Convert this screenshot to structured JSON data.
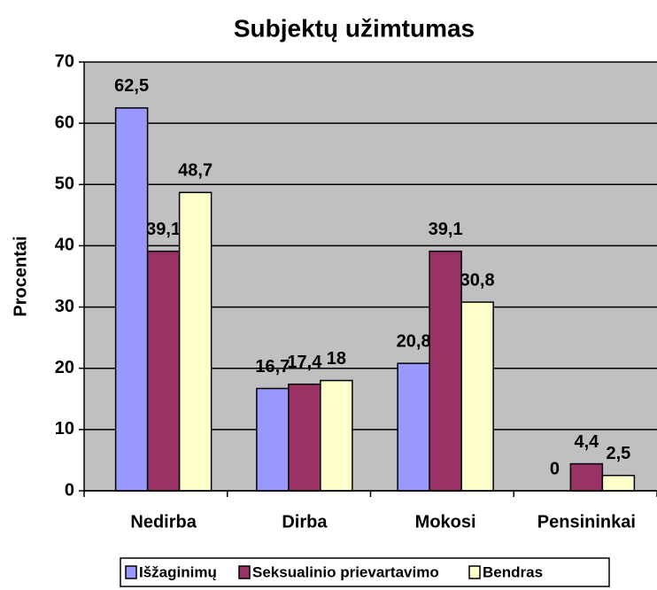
{
  "chart_data": {
    "type": "bar",
    "title": "Subjektų užimtumas",
    "y_label": "Procentai",
    "categories": [
      "Nedirba",
      "Dirba",
      "Mokosi",
      "Pensininkai"
    ],
    "series": [
      {
        "name": "Išžaginimų",
        "color": "#9999ff",
        "values": [
          62.5,
          16.7,
          20.8,
          0
        ],
        "value_labels": [
          "62,5",
          "16,7",
          "20,8",
          "0"
        ]
      },
      {
        "name": "Seksualinio prievartavimo",
        "color": "#993366",
        "values": [
          39.1,
          17.4,
          39.1,
          4.4
        ],
        "value_labels": [
          "39,1",
          "17,4",
          "39,1",
          "4,4"
        ]
      },
      {
        "name": "Bendras",
        "color": "#ffffcc",
        "values": [
          48.7,
          18,
          30.8,
          2.5
        ],
        "value_labels": [
          "48,7",
          "18",
          "30,8",
          "2,5"
        ]
      }
    ],
    "ylim": [
      0,
      70
    ],
    "yticks": [
      0,
      10,
      20,
      30,
      40,
      50,
      60,
      70
    ],
    "grid": true,
    "legend": "bottom"
  }
}
